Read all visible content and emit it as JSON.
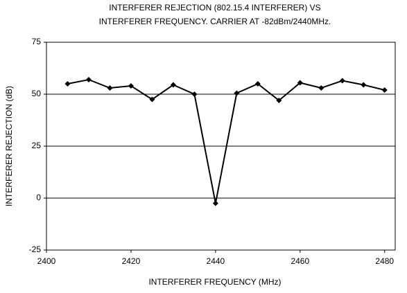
{
  "chart_data": {
    "type": "line",
    "title": [
      "INTERFERER REJECTION (802.15.4 INTERFERER) VS",
      "INTERFERER FREQUENCY. CARRIER AT -82dBm/2440MHz."
    ],
    "xlabel": "INTERFERER FREQUENCY (MHz)",
    "ylabel": "INTERFERER REJECTION (dB)",
    "x": [
      2405,
      2410,
      2415,
      2420,
      2425,
      2430,
      2435,
      2440,
      2445,
      2450,
      2455,
      2460,
      2465,
      2470,
      2475,
      2480
    ],
    "series": [
      {
        "color": "#000000",
        "values": [
          55,
          57,
          53,
          54,
          47.5,
          54.5,
          50,
          -2.5,
          50.5,
          55,
          47,
          55.5,
          53,
          56.5,
          54.5,
          52
        ]
      }
    ],
    "xlim": [
      2400,
      2482.5
    ],
    "xticks": [
      2400,
      2420,
      2440,
      2460,
      2480
    ],
    "ylim": [
      -25,
      75
    ],
    "yticks": [
      -25,
      0,
      25,
      50,
      75
    ],
    "grid": true
  }
}
